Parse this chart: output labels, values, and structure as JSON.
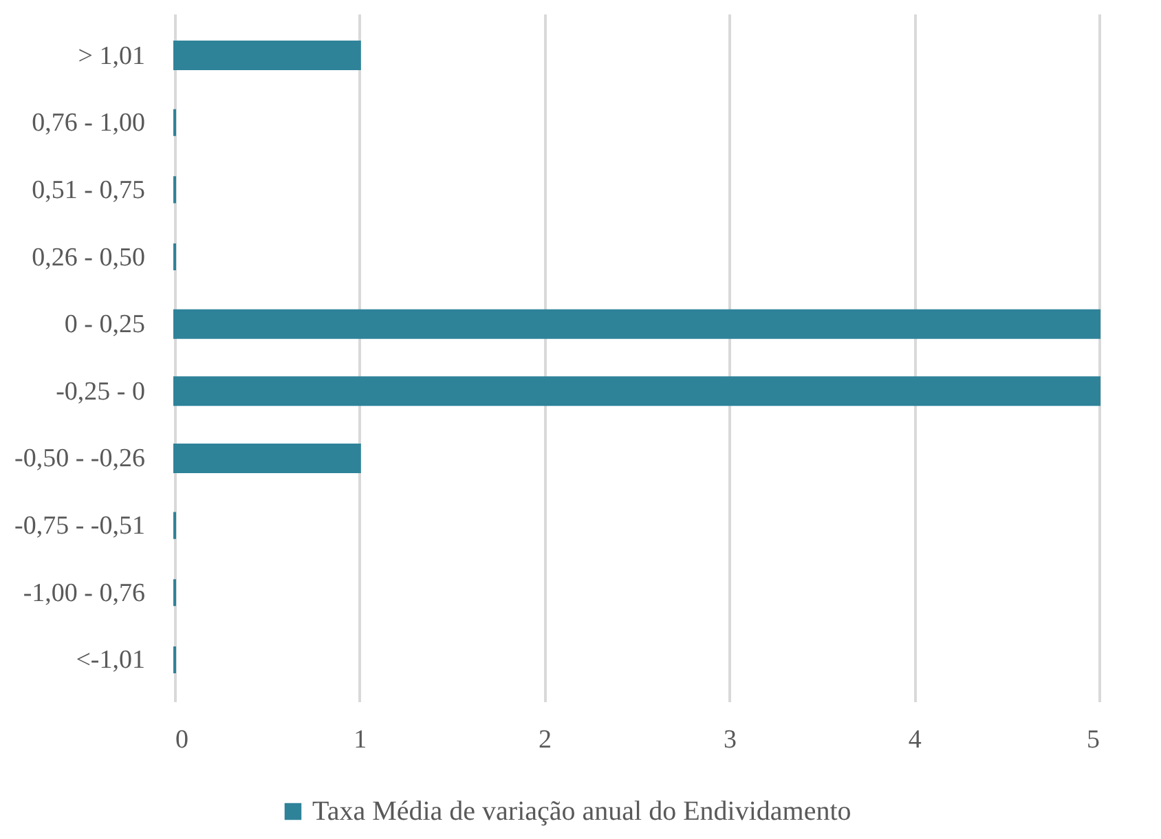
{
  "chart_data": {
    "type": "bar",
    "orientation": "horizontal",
    "categories": [
      "> 1,01",
      "0,76 - 1,00",
      "0,51 - 0,75",
      "0,26 - 0,50",
      "0 - 0,25",
      "-0,25 - 0",
      "-0,50 - -0,26",
      "-0,75 - -0,51",
      "-1,00 - 0,76",
      "<-1,01"
    ],
    "series": [
      {
        "name": "Taxa Média de variação anual do Endividamento",
        "color": "#2e8399",
        "values": [
          1,
          0,
          0,
          0,
          5,
          5,
          1,
          0,
          0,
          0
        ]
      }
    ],
    "xlim": [
      0,
      5
    ],
    "xticks": [
      0,
      1,
      2,
      3,
      4,
      5
    ],
    "grid": "x",
    "legend": "bottom"
  }
}
